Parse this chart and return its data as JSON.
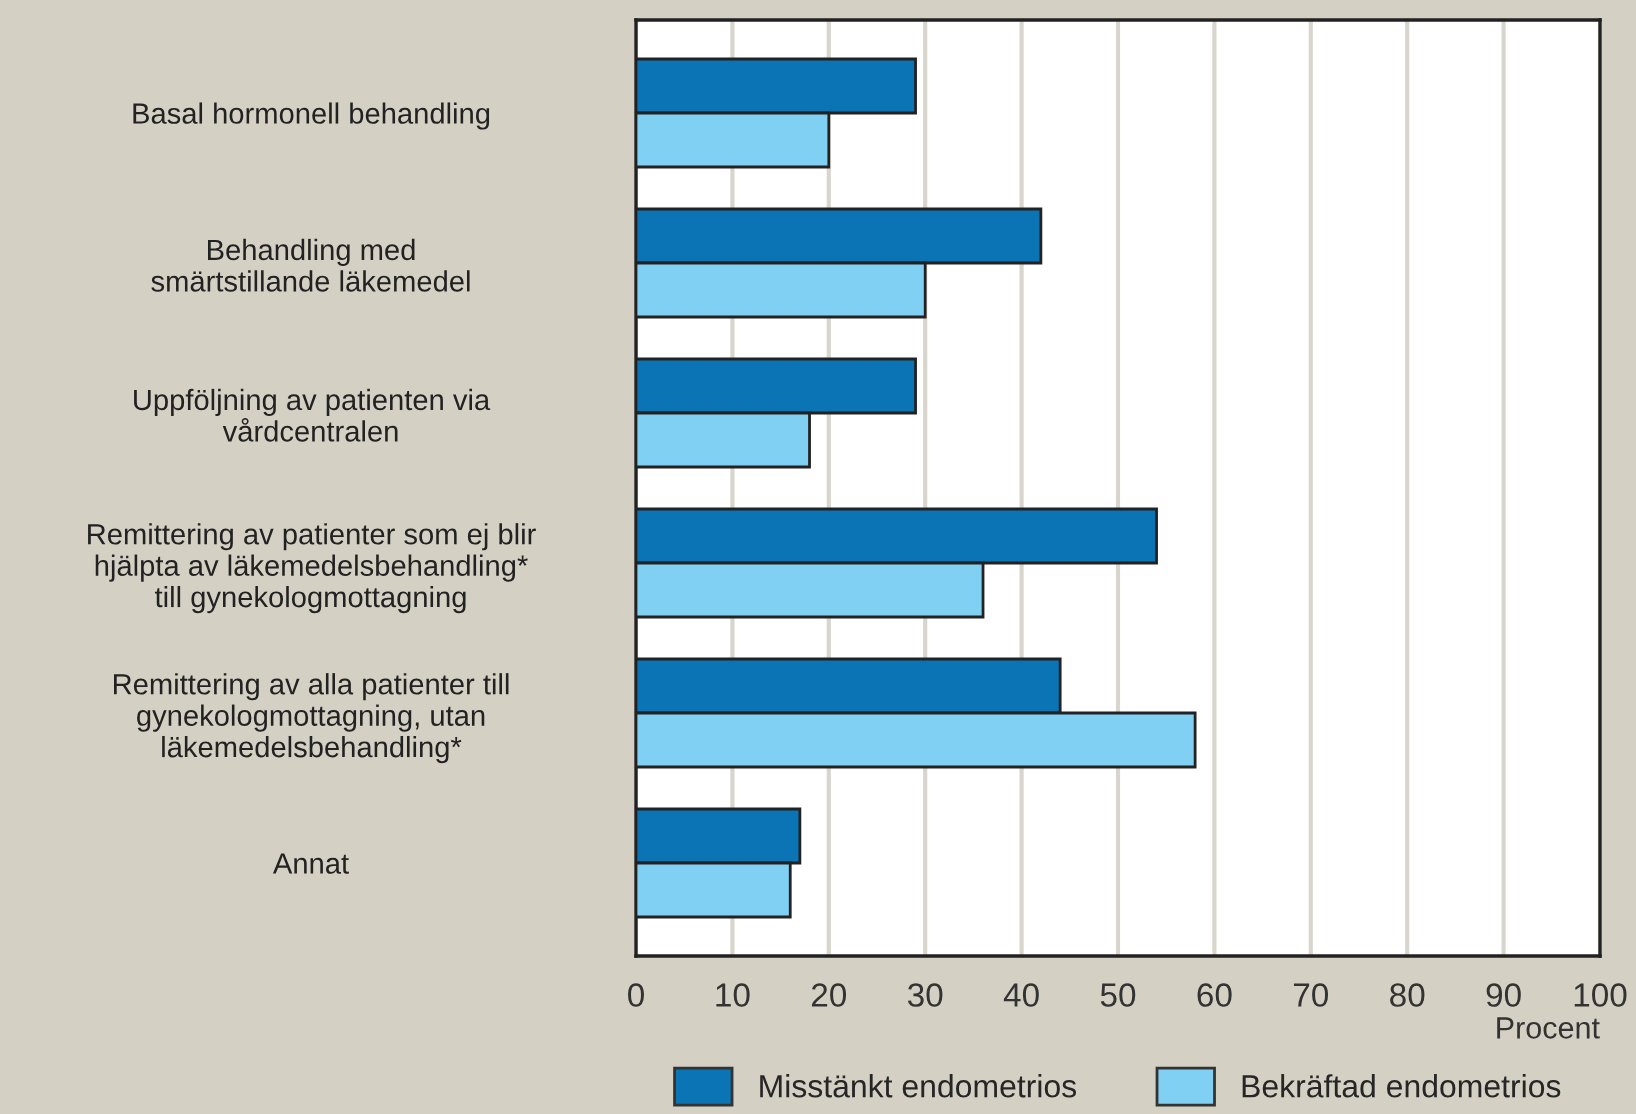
{
  "chart_data": {
    "type": "bar",
    "orientation": "horizontal",
    "xlabel": "Procent",
    "categories": [
      "Basal hormonell behandling",
      "Behandling med\nsmärtstillande läkemedel",
      "Uppföljning av patienten via\nvårdcentralen",
      "Remittering av patienter som ej blir\nhjälpta av läkemedelsbehandling*\ntill gynekologmottagning",
      "Remittering av alla patienter till\ngynekologmottagning, utan\nläkemedelsbehandling*",
      "Annat"
    ],
    "series": [
      {
        "name": "Misstänkt endometrios",
        "color": "#0b74b5",
        "values": [
          29,
          42,
          29,
          54,
          44,
          17
        ]
      },
      {
        "name": "Bekräftad endometrios",
        "color": "#80d0f4",
        "values": [
          20,
          30,
          18,
          36,
          58,
          16
        ]
      }
    ],
    "xlim": [
      0,
      100
    ],
    "xticks": [
      0,
      10,
      20,
      30,
      40,
      50,
      60,
      70,
      80,
      90,
      100
    ],
    "grid": "x",
    "legend": "bottom"
  }
}
